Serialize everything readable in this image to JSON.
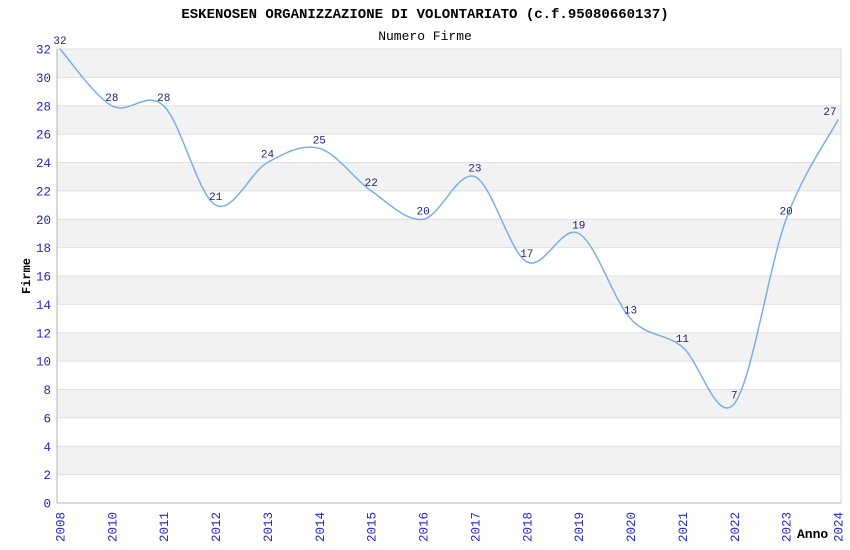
{
  "header": {
    "title": "ESKENOSEN ORGANIZZAZIONE DI VOLONTARIATO (c.f.95080660137)",
    "subtitle": "Numero Firme"
  },
  "chart_data": {
    "type": "line",
    "title": "ESKENOSEN ORGANIZZAZIONE DI VOLONTARIATO (c.f.95080660137)",
    "subtitle": "Numero Firme",
    "xlabel": "Anno",
    "ylabel": "Firme",
    "categories": [
      "2008",
      "2010",
      "2011",
      "2012",
      "2013",
      "2014",
      "2015",
      "2016",
      "2017",
      "2018",
      "2019",
      "2020",
      "2021",
      "2022",
      "2023",
      "2024"
    ],
    "values": [
      32,
      28,
      28,
      21,
      24,
      25,
      22,
      20,
      23,
      17,
      19,
      13,
      11,
      7,
      20,
      27
    ],
    "ylim": [
      0,
      32
    ],
    "ytick_step": 2,
    "grid": "horizontal-bands-alternating",
    "legend": "none",
    "colors": {
      "line": "#7bafe5",
      "band_fill": "#f2f2f2",
      "band_alt_fill": "#ffffff",
      "gridline": "#e0e0e0",
      "axis_line": "#b3b3b3",
      "right_border": "#d9d9d9",
      "tick_label": "#2424cc",
      "value_label": "#1f1f7a",
      "title_text": "#000000"
    }
  }
}
